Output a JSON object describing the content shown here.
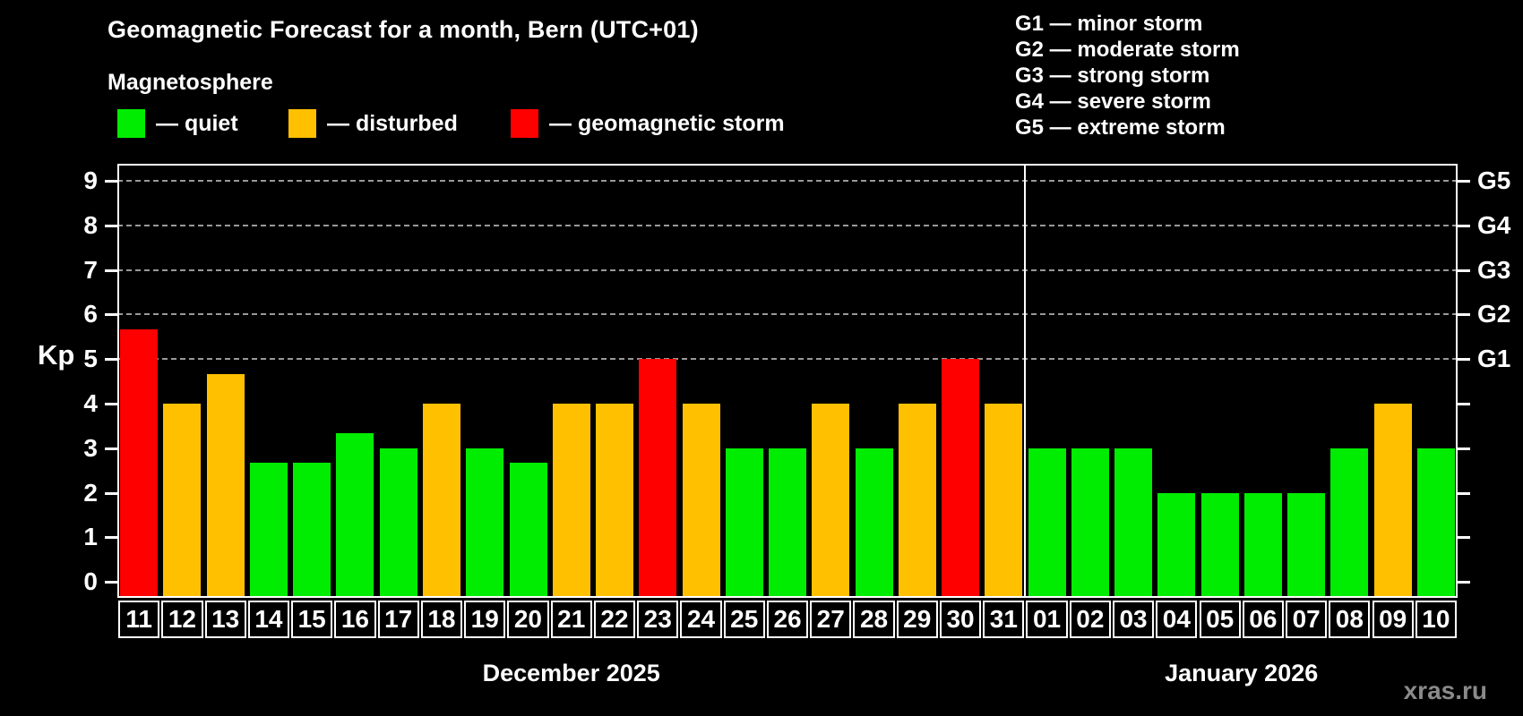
{
  "header": {
    "title": "Geomagnetic Forecast for a month, Bern (UTC+01)",
    "subtitle": "Magnetosphere",
    "legend": [
      {
        "key": "quiet",
        "label": "— quiet"
      },
      {
        "key": "disturbed",
        "label": "— disturbed"
      },
      {
        "key": "storm",
        "label": "— geomagnetic storm"
      }
    ],
    "g_scale_legend": [
      "G1 — minor storm",
      "G2 — moderate storm",
      "G3 — strong storm",
      "G4 — severe storm",
      "G5 — extreme storm"
    ]
  },
  "chart_data": {
    "type": "bar",
    "ylabel": "Kp",
    "ylim": [
      -0.36,
      9.4
    ],
    "y_ticks": [
      0,
      1,
      2,
      3,
      4,
      5,
      6,
      7,
      8,
      9
    ],
    "gridlines_kp": [
      5,
      6,
      7,
      8,
      9
    ],
    "grid": "dashed horizontal at G-storm levels only",
    "legend_position": "top",
    "g_labels": [
      {
        "kp": 5,
        "label": "G1"
      },
      {
        "kp": 6,
        "label": "G2"
      },
      {
        "kp": 7,
        "label": "G3"
      },
      {
        "kp": 8,
        "label": "G4"
      },
      {
        "kp": 9,
        "label": "G5"
      }
    ],
    "colors": {
      "quiet": "#00ec00",
      "disturbed": "#ffc000",
      "storm": "#ff0000"
    },
    "months": [
      {
        "label": "December 2025",
        "days": [
          {
            "day": "11",
            "kp": 5.67,
            "level": "storm"
          },
          {
            "day": "12",
            "kp": 4,
            "level": "disturbed"
          },
          {
            "day": "13",
            "kp": 4.67,
            "level": "disturbed"
          },
          {
            "day": "14",
            "kp": 2.67,
            "level": "quiet"
          },
          {
            "day": "15",
            "kp": 2.67,
            "level": "quiet"
          },
          {
            "day": "16",
            "kp": 3.33,
            "level": "quiet"
          },
          {
            "day": "17",
            "kp": 3,
            "level": "quiet"
          },
          {
            "day": "18",
            "kp": 4,
            "level": "disturbed"
          },
          {
            "day": "19",
            "kp": 3,
            "level": "quiet"
          },
          {
            "day": "20",
            "kp": 2.67,
            "level": "quiet"
          },
          {
            "day": "21",
            "kp": 4,
            "level": "disturbed"
          },
          {
            "day": "22",
            "kp": 4,
            "level": "disturbed"
          },
          {
            "day": "23",
            "kp": 5,
            "level": "storm"
          },
          {
            "day": "24",
            "kp": 4,
            "level": "disturbed"
          },
          {
            "day": "25",
            "kp": 3,
            "level": "quiet"
          },
          {
            "day": "26",
            "kp": 3,
            "level": "quiet"
          },
          {
            "day": "27",
            "kp": 4,
            "level": "disturbed"
          },
          {
            "day": "28",
            "kp": 3,
            "level": "quiet"
          },
          {
            "day": "29",
            "kp": 4,
            "level": "disturbed"
          },
          {
            "day": "30",
            "kp": 5,
            "level": "storm"
          },
          {
            "day": "31",
            "kp": 4,
            "level": "disturbed"
          }
        ]
      },
      {
        "label": "January 2026",
        "days": [
          {
            "day": "01",
            "kp": 3,
            "level": "quiet"
          },
          {
            "day": "02",
            "kp": 3,
            "level": "quiet"
          },
          {
            "day": "03",
            "kp": 3,
            "level": "quiet"
          },
          {
            "day": "04",
            "kp": 2,
            "level": "quiet"
          },
          {
            "day": "05",
            "kp": 2,
            "level": "quiet"
          },
          {
            "day": "06",
            "kp": 2,
            "level": "quiet"
          },
          {
            "day": "07",
            "kp": 2,
            "level": "quiet"
          },
          {
            "day": "08",
            "kp": 3,
            "level": "quiet"
          },
          {
            "day": "09",
            "kp": 4,
            "level": "disturbed"
          },
          {
            "day": "10",
            "kp": 3,
            "level": "quiet"
          }
        ]
      }
    ]
  },
  "watermark": "xras.ru"
}
